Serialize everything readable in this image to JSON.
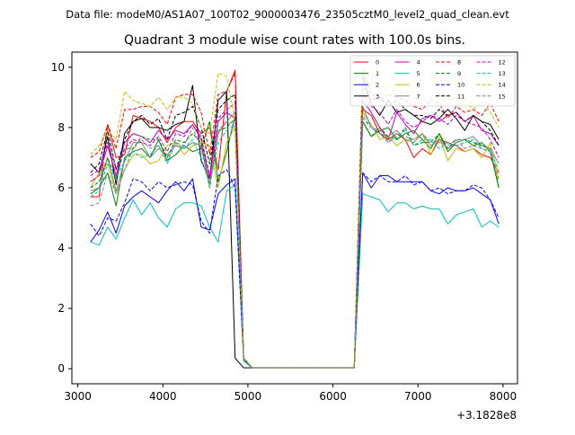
{
  "suptitle": "Data file: modeM0/AS1A07_100T02_9000003476_23505cztM0_level2_quad_clean.evt",
  "chart_data": {
    "type": "line",
    "title": "Quadrant 3 module wise count rates with 100.0s bins.",
    "xlabel": "",
    "ylabel": "",
    "x_offset_label": "+3.1828e8",
    "xlim": [
      2930,
      8170
    ],
    "ylim": [
      -0.5,
      10.5
    ],
    "xticks": [
      3000,
      4000,
      5000,
      6000,
      7000,
      8000
    ],
    "yticks": [
      0,
      2,
      4,
      6,
      8,
      10
    ],
    "grid": false,
    "legend_position": "top-right",
    "legend_ncol": 4,
    "x": [
      3150,
      3250,
      3350,
      3450,
      3550,
      3650,
      3750,
      3850,
      3950,
      4050,
      4150,
      4250,
      4350,
      4450,
      4550,
      4650,
      4750,
      4850,
      4950,
      5050,
      5150,
      5250,
      5350,
      5450,
      5550,
      5650,
      5750,
      5850,
      5950,
      6050,
      6150,
      6250,
      6350,
      6450,
      6550,
      6650,
      6750,
      6850,
      6950,
      7050,
      7150,
      7250,
      7350,
      7450,
      7550,
      7650,
      7750,
      7850,
      7950
    ],
    "series": [
      {
        "name": "0",
        "color": "#ff0000",
        "dash": false,
        "values": [
          5.7,
          5.7,
          8.1,
          7.0,
          7.1,
          8.4,
          8.3,
          8.2,
          8.0,
          7.5,
          8.0,
          8.2,
          8.2,
          7.8,
          8.0,
          6.6,
          9.2,
          9.9,
          0.35,
          0.03,
          0.03,
          0.03,
          0.03,
          0.03,
          0.03,
          0.03,
          0.03,
          0.03,
          0.03,
          0.03,
          0.03,
          0.03,
          8.6,
          8.4,
          7.8,
          7.6,
          7.8,
          7.6,
          7.0,
          7.3,
          7.1,
          7.6,
          7.5,
          7.4,
          7.2,
          7.3,
          7.1,
          7.0,
          6.5
        ]
      },
      {
        "name": "1",
        "color": "#008000",
        "dash": false,
        "values": [
          5.8,
          6.0,
          6.5,
          5.4,
          7.0,
          7.2,
          7.3,
          7.0,
          7.6,
          6.9,
          7.1,
          7.4,
          7.2,
          7.3,
          8.2,
          6.2,
          7.2,
          8.4,
          0.3,
          0.03,
          0.03,
          0.03,
          0.03,
          0.03,
          0.03,
          0.03,
          0.03,
          0.03,
          0.03,
          0.03,
          0.03,
          0.03,
          8.2,
          7.7,
          7.9,
          8.0,
          7.6,
          7.8,
          7.9,
          7.6,
          7.3,
          7.8,
          7.2,
          7.5,
          7.6,
          7.4,
          7.5,
          7.2,
          6.0
        ]
      },
      {
        "name": "2",
        "color": "#0000ff",
        "dash": false,
        "values": [
          4.2,
          4.6,
          5.2,
          4.5,
          5.4,
          5.7,
          5.9,
          5.7,
          5.5,
          5.9,
          6.2,
          5.9,
          6.3,
          4.7,
          4.6,
          5.8,
          6.1,
          6.3,
          0.3,
          0.03,
          0.03,
          0.03,
          0.03,
          0.03,
          0.03,
          0.03,
          0.03,
          0.03,
          0.03,
          0.03,
          0.03,
          0.03,
          6.5,
          6.0,
          6.4,
          6.4,
          6.2,
          6.2,
          6.2,
          6.2,
          5.9,
          5.8,
          6.0,
          5.9,
          5.9,
          6.0,
          5.8,
          5.6,
          4.8
        ]
      },
      {
        "name": "3",
        "color": "#000000",
        "dash": false,
        "values": [
          6.8,
          6.5,
          7.7,
          6.1,
          7.8,
          8.2,
          8.3,
          8.0,
          8.0,
          7.9,
          8.1,
          8.2,
          9.4,
          6.9,
          6.3,
          8.9,
          9.2,
          0.35,
          0.03,
          0.03,
          0.03,
          0.03,
          0.03,
          0.03,
          0.03,
          0.03,
          0.03,
          0.03,
          0.03,
          0.03,
          0.03,
          0.03,
          9.7,
          8.8,
          8.4,
          8.9,
          8.5,
          8.6,
          8.4,
          8.2,
          8.1,
          8.3,
          8.6,
          8.3,
          7.9,
          8.4,
          8.2,
          8.1,
          7.6
        ]
      },
      {
        "name": "4",
        "color": "#bf00bf",
        "dash": false,
        "values": [
          6.2,
          6.4,
          7.4,
          6.4,
          7.5,
          7.8,
          7.7,
          7.5,
          7.9,
          7.6,
          7.9,
          7.8,
          8.1,
          7.6,
          6.3,
          8.2,
          8.5,
          8.3,
          0.3,
          0.03,
          0.03,
          0.03,
          0.03,
          0.03,
          0.03,
          0.03,
          0.03,
          0.03,
          0.03,
          0.03,
          0.03,
          0.03,
          8.9,
          8.5,
          8.0,
          7.6,
          8.5,
          8.1,
          7.8,
          8.3,
          8.4,
          8.2,
          8.4,
          8.5,
          8.2,
          8.4,
          7.9,
          7.8,
          7.4
        ]
      },
      {
        "name": "5",
        "color": "#00bfbf",
        "dash": false,
        "values": [
          4.2,
          4.1,
          4.7,
          4.3,
          5.0,
          5.6,
          5.1,
          5.5,
          5.0,
          4.7,
          5.3,
          5.5,
          5.5,
          5.4,
          4.7,
          4.2,
          5.9,
          6.1,
          0.25,
          0.03,
          0.03,
          0.03,
          0.03,
          0.03,
          0.03,
          0.03,
          0.03,
          0.03,
          0.03,
          0.03,
          0.03,
          0.03,
          5.8,
          5.7,
          5.6,
          5.2,
          5.5,
          5.5,
          5.3,
          5.4,
          5.3,
          5.3,
          4.8,
          5.1,
          5.2,
          5.3,
          4.7,
          4.9,
          4.7
        ]
      },
      {
        "name": "6",
        "color": "#bfbf00",
        "dash": false,
        "values": [
          6.0,
          6.5,
          6.8,
          5.8,
          6.6,
          7.1,
          7.1,
          6.8,
          6.9,
          7.4,
          7.5,
          7.1,
          7.4,
          7.5,
          7.4,
          6.0,
          7.5,
          8.0,
          0.35,
          0.03,
          0.03,
          0.03,
          0.03,
          0.03,
          0.03,
          0.03,
          0.03,
          0.03,
          0.03,
          0.03,
          0.03,
          0.03,
          8.5,
          8.1,
          7.6,
          7.7,
          7.4,
          7.6,
          7.6,
          7.8,
          7.1,
          7.7,
          6.9,
          7.3,
          7.2,
          7.3,
          7.0,
          7.5,
          6.3
        ]
      },
      {
        "name": "7",
        "color": "#808080",
        "dash": false,
        "values": [
          5.9,
          6.0,
          7.0,
          5.9,
          6.9,
          7.5,
          7.5,
          7.0,
          7.3,
          7.1,
          7.4,
          7.3,
          7.5,
          7.4,
          6.1,
          7.8,
          8.2,
          8.5,
          0.3,
          0.03,
          0.03,
          0.03,
          0.03,
          0.03,
          0.03,
          0.03,
          0.03,
          0.03,
          0.03,
          0.03,
          0.03,
          0.03,
          8.7,
          8.0,
          7.8,
          7.7,
          7.9,
          7.6,
          7.5,
          7.8,
          7.4,
          7.6,
          7.3,
          7.5,
          7.6,
          7.7,
          7.4,
          7.3,
          6.8
        ]
      },
      {
        "name": "8",
        "color": "#ff0000",
        "dash": true,
        "values": [
          7.0,
          7.2,
          8.1,
          7.3,
          8.6,
          8.6,
          8.7,
          8.7,
          8.5,
          8.1,
          9.0,
          9.1,
          9.1,
          8.5,
          7.1,
          9.1,
          9.2,
          9.8,
          0.35,
          0.03,
          0.03,
          0.03,
          0.03,
          0.03,
          0.03,
          0.03,
          0.03,
          0.03,
          0.03,
          0.03,
          0.03,
          0.03,
          9.9,
          9.1,
          8.9,
          9.1,
          9.0,
          8.9,
          8.7,
          8.6,
          8.9,
          8.8,
          8.3,
          8.7,
          8.5,
          8.6,
          8.4,
          8.8,
          8.2
        ]
      },
      {
        "name": "9",
        "color": "#008000",
        "dash": true,
        "values": [
          6.0,
          6.2,
          7.0,
          6.3,
          7.3,
          7.3,
          7.7,
          7.6,
          7.6,
          7.0,
          7.6,
          7.5,
          7.8,
          7.5,
          6.0,
          7.9,
          8.0,
          8.3,
          0.3,
          0.03,
          0.03,
          0.03,
          0.03,
          0.03,
          0.03,
          0.03,
          0.03,
          0.03,
          0.03,
          0.03,
          0.03,
          0.03,
          8.2,
          7.7,
          8.0,
          7.7,
          7.6,
          8.0,
          7.4,
          7.5,
          7.5,
          7.8,
          7.3,
          7.6,
          7.6,
          7.5,
          7.4,
          7.3,
          6.0
        ]
      },
      {
        "name": "10",
        "color": "#0000ff",
        "dash": true,
        "values": [
          4.8,
          4.4,
          5.0,
          4.9,
          5.5,
          6.3,
          6.2,
          5.9,
          6.2,
          6.0,
          6.1,
          6.2,
          6.1,
          4.9,
          4.5,
          6.4,
          6.6,
          6.0,
          0.3,
          0.03,
          0.03,
          0.03,
          0.03,
          0.03,
          0.03,
          0.03,
          0.03,
          0.03,
          0.03,
          0.03,
          0.03,
          0.03,
          6.5,
          6.2,
          6.4,
          6.2,
          6.2,
          6.4,
          6.1,
          6.2,
          5.9,
          6.0,
          5.8,
          5.9,
          5.9,
          6.1,
          6.0,
          5.6,
          5.0
        ]
      },
      {
        "name": "11",
        "color": "#000000",
        "dash": true,
        "values": [
          6.5,
          6.8,
          7.9,
          6.6,
          7.6,
          8.2,
          8.4,
          8.1,
          8.3,
          7.6,
          8.4,
          8.5,
          8.7,
          8.0,
          6.8,
          8.6,
          8.9,
          9.1,
          0.35,
          0.03,
          0.03,
          0.03,
          0.03,
          0.03,
          0.03,
          0.03,
          0.03,
          0.03,
          0.03,
          0.03,
          0.03,
          0.03,
          9.4,
          8.9,
          9.0,
          8.7,
          8.9,
          8.6,
          8.4,
          8.4,
          8.3,
          8.6,
          8.4,
          8.5,
          8.2,
          8.4,
          8.2,
          7.9,
          7.4
        ]
      },
      {
        "name": "12",
        "color": "#bf00bf",
        "dash": true,
        "values": [
          6.4,
          6.6,
          7.5,
          6.6,
          7.3,
          7.6,
          7.5,
          7.4,
          7.7,
          7.2,
          7.8,
          7.7,
          8.1,
          7.7,
          6.4,
          8.3,
          8.6,
          8.8,
          0.3,
          0.03,
          0.03,
          0.03,
          0.03,
          0.03,
          0.03,
          0.03,
          0.03,
          0.03,
          0.03,
          0.03,
          0.03,
          0.03,
          9.1,
          8.7,
          8.5,
          8.1,
          8.6,
          8.2,
          8.0,
          8.2,
          8.4,
          8.3,
          8.1,
          8.4,
          8.2,
          8.1,
          8.0,
          7.6,
          7.0
        ]
      },
      {
        "name": "13",
        "color": "#00bfbf",
        "dash": true,
        "values": [
          5.7,
          5.9,
          6.8,
          6.3,
          6.9,
          7.2,
          7.0,
          7.1,
          7.4,
          6.8,
          7.5,
          7.3,
          7.6,
          7.0,
          6.1,
          7.5,
          7.9,
          8.1,
          0.3,
          0.03,
          0.03,
          0.03,
          0.03,
          0.03,
          0.03,
          0.03,
          0.03,
          0.03,
          0.03,
          0.03,
          0.03,
          0.03,
          8.4,
          8.0,
          7.8,
          7.5,
          7.7,
          7.9,
          7.4,
          7.6,
          7.6,
          7.3,
          7.5,
          7.4,
          7.5,
          7.6,
          7.3,
          7.2,
          6.6
        ]
      },
      {
        "name": "14",
        "color": "#bfbf00",
        "dash": true,
        "values": [
          7.1,
          7.4,
          7.9,
          7.6,
          9.2,
          8.9,
          8.8,
          8.7,
          9.0,
          8.6,
          9.0,
          9.0,
          8.8,
          8.0,
          7.8,
          9.8,
          9.7,
          8.2,
          0.35,
          0.03,
          0.03,
          0.03,
          0.03,
          0.03,
          0.03,
          0.03,
          0.03,
          0.03,
          0.03,
          0.03,
          0.03,
          0.03,
          9.8,
          9.4,
          9.3,
          9.4,
          9.1,
          9.2,
          9.0,
          8.9,
          9.0,
          9.1,
          8.8,
          9.0,
          8.9,
          8.6,
          8.9,
          8.5,
          8.0
        ]
      },
      {
        "name": "15",
        "color": "#808080",
        "dash": true,
        "values": [
          5.4,
          5.5,
          6.5,
          5.8,
          6.6,
          7.3,
          7.6,
          7.3,
          7.4,
          6.9,
          7.5,
          7.4,
          8.0,
          7.3,
          6.1,
          7.9,
          8.2,
          8.0,
          0.3,
          0.03,
          0.03,
          0.03,
          0.03,
          0.03,
          0.03,
          0.03,
          0.03,
          0.03,
          0.03,
          0.03,
          0.03,
          0.03,
          8.3,
          8.0,
          7.9,
          7.5,
          7.8,
          7.7,
          7.6,
          7.8,
          7.5,
          7.5,
          7.4,
          7.6,
          7.3,
          7.4,
          7.3,
          7.2,
          6.2
        ]
      }
    ]
  }
}
